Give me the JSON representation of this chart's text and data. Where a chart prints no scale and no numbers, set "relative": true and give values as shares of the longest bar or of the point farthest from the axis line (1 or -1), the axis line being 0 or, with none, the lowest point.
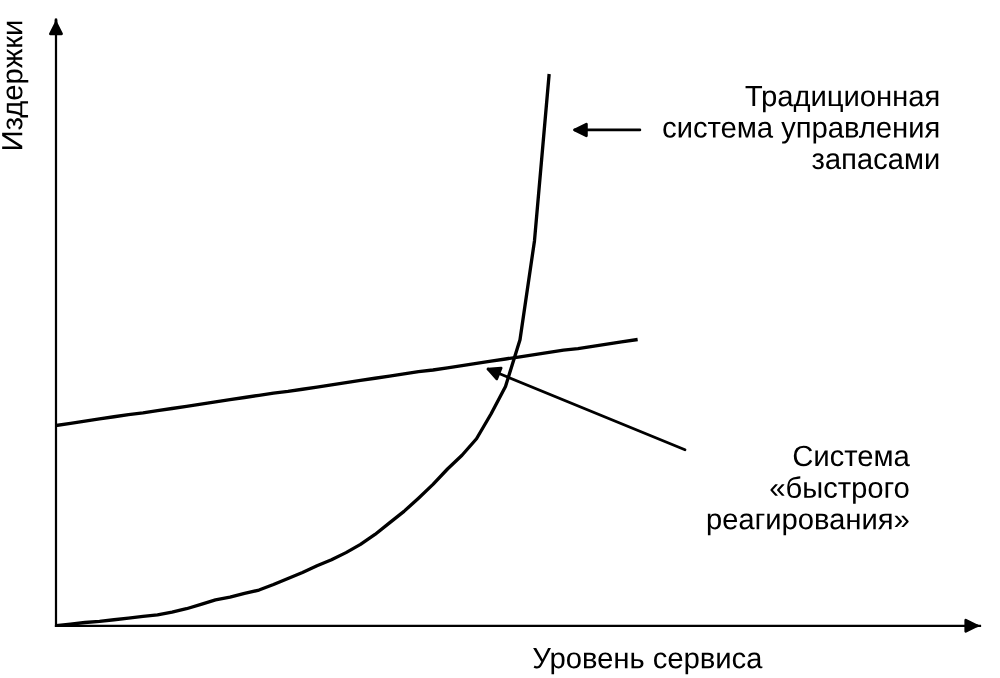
{
  "chart_data": {
    "type": "line",
    "relative": true,
    "xlabel": "Уровень сервиса",
    "ylabel": "Издержки",
    "marker": "none",
    "line_style": "solid",
    "categories": [
      null,
      null,
      null,
      null,
      null,
      null,
      null,
      null,
      null,
      null,
      null,
      null,
      null,
      null,
      null,
      null,
      null,
      null,
      null,
      null,
      null,
      null,
      null,
      null,
      null,
      null,
      null,
      null,
      null,
      null,
      null,
      null,
      null,
      null,
      null,
      null,
      null,
      null,
      null,
      null,
      null
    ],
    "series": [
      {
        "color": "#000000",
        "values": [
          0,
          0.003,
          0.006,
          0.008,
          0.011,
          0.014,
          0.017,
          0.02,
          0.025,
          0.031,
          0.039,
          0.047,
          0.052,
          0.059,
          0.065,
          0.075,
          0.086,
          0.097,
          0.109,
          0.12,
          0.133,
          0.148,
          0.166,
          0.187,
          0.208,
          0.232,
          0.257,
          0.285,
          0.31,
          0.34,
          0.385,
          0.435,
          0.52,
          0.7,
          1.0,
          null,
          null,
          null,
          null,
          null,
          null
        ]
      },
      {
        "color": "#000000",
        "values": [
          0.364,
          0.368,
          0.372,
          0.376,
          0.38,
          0.384,
          0.387,
          0.391,
          0.395,
          0.399,
          0.403,
          0.407,
          0.411,
          0.415,
          0.419,
          0.423,
          0.426,
          0.43,
          0.434,
          0.438,
          0.442,
          0.446,
          0.45,
          0.454,
          0.458,
          0.462,
          0.465,
          0.469,
          0.473,
          0.477,
          0.481,
          0.485,
          0.489,
          0.493,
          0.497,
          0.501,
          0.504,
          0.508,
          0.512,
          0.516,
          0.52
        ]
      }
    ],
    "annotations": [
      "Традиционная\nсистема управления\nзапасами",
      "Система\n«быстрого\nреагирования»"
    ]
  }
}
